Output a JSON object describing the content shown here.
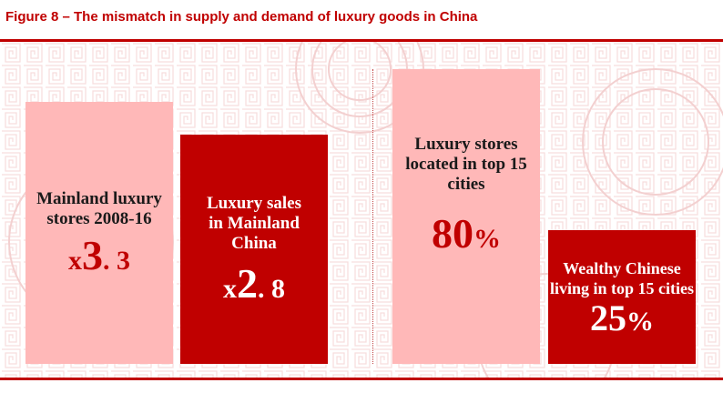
{
  "title": "Figure 8 – The mismatch in supply and demand of luxury goods in China",
  "colors": {
    "accent": "#c00000",
    "pink": "#ffb8b8"
  },
  "left_group": {
    "stores": {
      "label": "Mainland luxury stores 2008-16",
      "prefix": "x",
      "int": "3",
      "dec": ". 3"
    },
    "sales": {
      "label": "Luxury sales in Mainland China",
      "prefix": "x",
      "int": "2",
      "dec": ". 8"
    }
  },
  "right_group": {
    "top_cities_stores": {
      "label": "Luxury stores located in top 15 cities",
      "number": "80",
      "unit": "%"
    },
    "wealthy_living": {
      "label": "Wealthy Chinese living in top 15 cities",
      "number": "25",
      "unit": "%"
    }
  }
}
